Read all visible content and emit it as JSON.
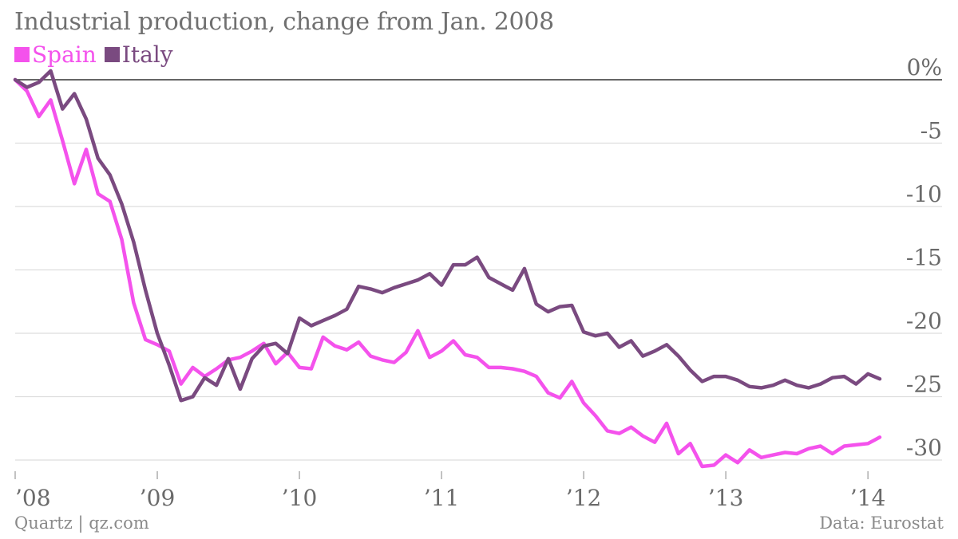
{
  "header": {
    "title": "Industrial production, change from Jan. 2008"
  },
  "footer": {
    "source_left": "Quartz | qz.com",
    "source_right": "Data: Eurostat"
  },
  "colors": {
    "spain": "#f452ec",
    "italy": "#7a4a80",
    "grid": "#dddddd",
    "zero_line": "#333333",
    "axis_text": "#6a6a6a"
  },
  "chart_data": {
    "type": "line",
    "title": "Industrial production, change from Jan. 2008",
    "xlabel": "",
    "ylabel": "",
    "grid": true,
    "legend_position": "top-left",
    "x_ticks": [
      "’08",
      "’09",
      "’10",
      "’11",
      "’12",
      "’13",
      "’14"
    ],
    "x_start": "2008-01",
    "x_end": "2014-01",
    "y_ticks": [
      {
        "value": 0,
        "label": "0%"
      },
      {
        "value": -5,
        "label": "-5"
      },
      {
        "value": -10,
        "label": "-10"
      },
      {
        "value": -15,
        "label": "-15"
      },
      {
        "value": -20,
        "label": "-20"
      },
      {
        "value": -25,
        "label": "-25"
      },
      {
        "value": -30,
        "label": "-30"
      }
    ],
    "ylim": [
      -31,
      1
    ],
    "series": [
      {
        "name": "Spain",
        "color": "#f452ec",
        "values": [
          0,
          -0.9,
          -2.9,
          -1.6,
          -4.8,
          -8.2,
          -5.5,
          -9.0,
          -9.6,
          -12.6,
          -17.6,
          -20.5,
          -20.9,
          -21.4,
          -24.0,
          -22.7,
          -23.4,
          -22.8,
          -22.1,
          -21.9,
          -21.4,
          -20.8,
          -22.4,
          -21.5,
          -22.7,
          -22.8,
          -20.3,
          -21.0,
          -21.3,
          -20.7,
          -21.8,
          -22.1,
          -22.3,
          -21.5,
          -19.8,
          -21.9,
          -21.4,
          -20.6,
          -21.7,
          -21.9,
          -22.7,
          -22.7,
          -22.8,
          -23.0,
          -23.4,
          -24.7,
          -25.1,
          -23.8,
          -25.5,
          -26.5,
          -27.7,
          -27.9,
          -27.4,
          -28.1,
          -28.6,
          -27.1,
          -29.5,
          -28.7,
          -30.5,
          -30.4,
          -29.6,
          -30.2,
          -29.2,
          -29.8,
          -29.6,
          -29.4,
          -29.5,
          -29.1,
          -28.9,
          -29.5,
          -28.9,
          -28.8,
          -28.7,
          -28.2
        ]
      },
      {
        "name": "Italy",
        "color": "#7a4a80",
        "values": [
          0,
          -0.6,
          -0.2,
          0.7,
          -2.3,
          -1.1,
          -3.1,
          -6.2,
          -7.5,
          -9.8,
          -12.8,
          -16.6,
          -20.0,
          -22.5,
          -25.3,
          -25.0,
          -23.5,
          -24.1,
          -22.0,
          -24.4,
          -22.0,
          -21.0,
          -20.8,
          -21.6,
          -18.8,
          -19.4,
          -19.0,
          -18.6,
          -18.1,
          -16.3,
          -16.5,
          -16.8,
          -16.4,
          -16.1,
          -15.8,
          -15.3,
          -16.2,
          -14.6,
          -14.6,
          -14.0,
          -15.6,
          -16.1,
          -16.6,
          -14.9,
          -17.7,
          -18.3,
          -17.9,
          -17.8,
          -19.9,
          -20.2,
          -20.0,
          -21.1,
          -20.6,
          -21.8,
          -21.4,
          -20.9,
          -21.8,
          -22.9,
          -23.8,
          -23.4,
          -23.4,
          -23.7,
          -24.2,
          -24.3,
          -24.1,
          -23.7,
          -24.1,
          -24.3,
          -24.0,
          -23.5,
          -23.4,
          -24.0,
          -23.2,
          -23.6
        ]
      }
    ]
  }
}
